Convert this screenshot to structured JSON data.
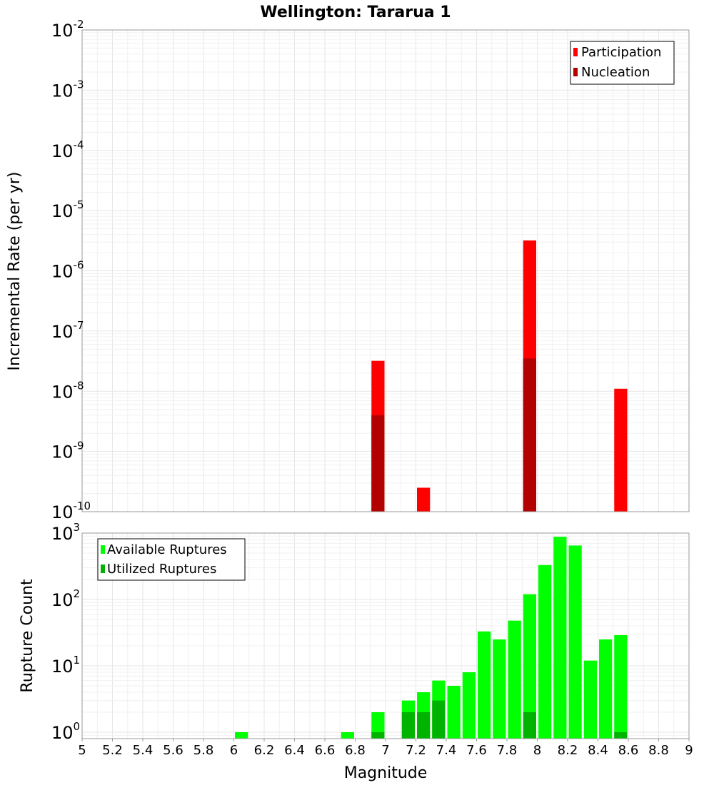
{
  "chart_data": [
    {
      "type": "bar",
      "title": "Wellington: Tararua 1",
      "xlabel": "",
      "ylabel": "Incremental Rate (per yr)",
      "yscale": "log",
      "ylim": [
        1e-10,
        0.01
      ],
      "xlim": [
        5,
        9
      ],
      "bin_width": 0.1,
      "ytick_exponents": [
        "-2",
        "-3",
        "-4",
        "-5",
        "-6",
        "-7",
        "-8",
        "-9",
        "-10"
      ],
      "legend_position": "top-right",
      "series": [
        {
          "name": "Participation",
          "color": "#ff0000",
          "x": [
            6.95,
            7.25,
            7.95,
            8.55
          ],
          "values": [
            3.2e-08,
            2.5e-10,
            3.2e-06,
            1.1e-08
          ]
        },
        {
          "name": "Nucleation",
          "color": "#b30000",
          "x": [
            6.95,
            7.95
          ],
          "values": [
            4e-09,
            3.5e-08
          ]
        }
      ]
    },
    {
      "type": "bar",
      "title": "",
      "xlabel": "Magnitude",
      "ylabel": "Rupture Count",
      "yscale": "log",
      "ylim": [
        0.8,
        1000
      ],
      "xlim": [
        5,
        9
      ],
      "bin_width": 0.1,
      "ytick_exponents": [
        "3",
        "2",
        "1",
        "0"
      ],
      "xtick_labels": [
        "5",
        "5.2",
        "5.4",
        "5.6",
        "5.8",
        "6",
        "6.2",
        "6.4",
        "6.6",
        "6.8",
        "7",
        "7.2",
        "7.4",
        "7.6",
        "7.8",
        "8",
        "8.2",
        "8.4",
        "8.6",
        "8.8",
        "9"
      ],
      "legend_position": "top-left",
      "series": [
        {
          "name": "Available Ruptures",
          "color": "#00ff00",
          "x": [
            6.05,
            6.75,
            6.95,
            7.15,
            7.25,
            7.35,
            7.45,
            7.55,
            7.65,
            7.75,
            7.85,
            7.95,
            8.05,
            8.15,
            8.25,
            8.35,
            8.45,
            8.55
          ],
          "values": [
            1,
            1,
            2,
            3,
            4,
            6,
            5,
            8,
            33,
            25,
            48,
            120,
            330,
            880,
            650,
            12,
            25,
            29
          ]
        },
        {
          "name": "Utilized Ruptures",
          "color": "#00b300",
          "x": [
            6.95,
            7.15,
            7.25,
            7.35,
            7.95,
            8.55
          ],
          "values": [
            1,
            2,
            2,
            3,
            2,
            1
          ]
        }
      ]
    }
  ]
}
